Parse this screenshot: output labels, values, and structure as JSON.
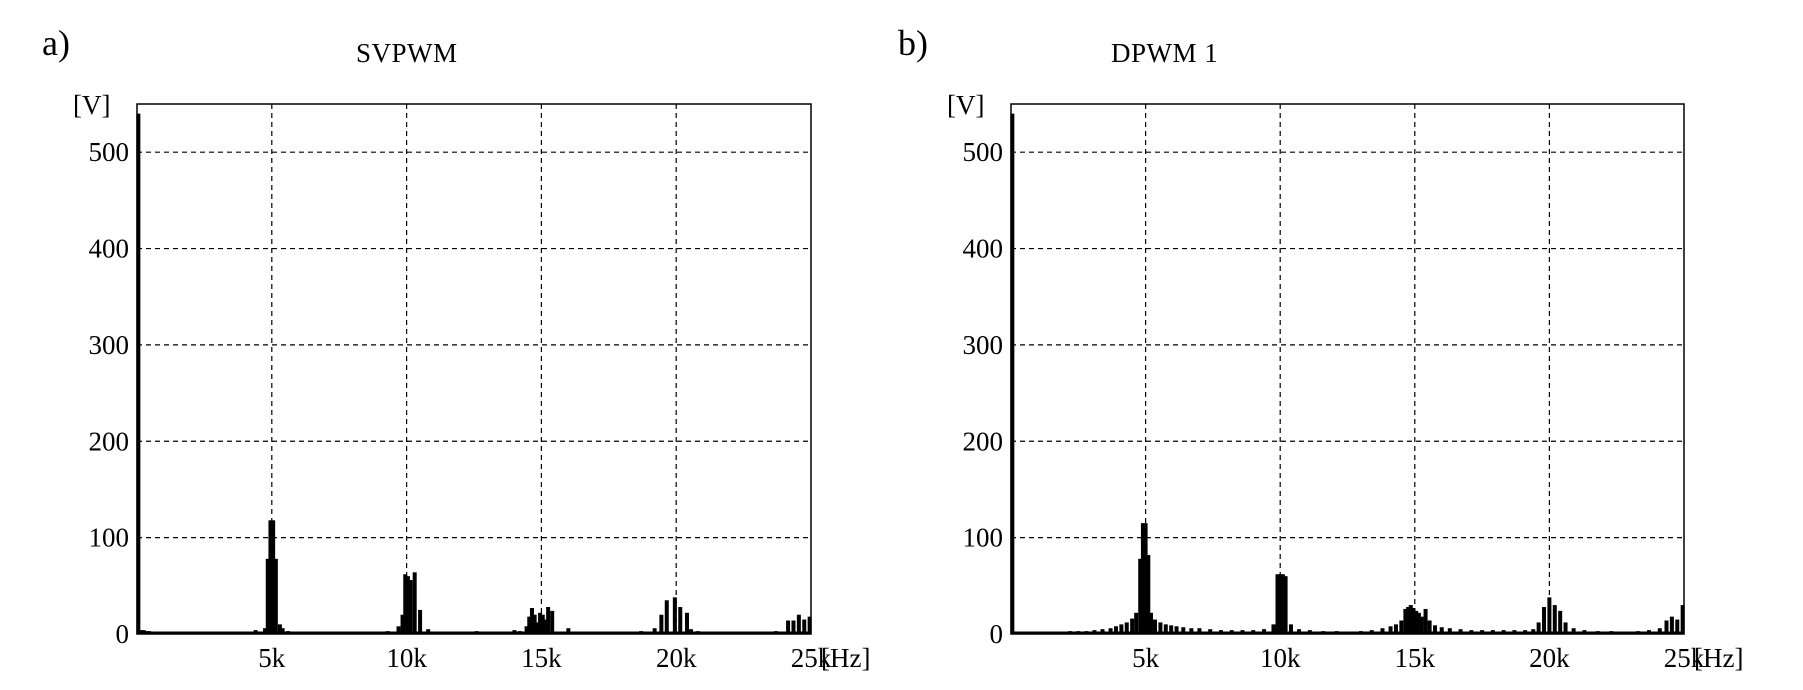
{
  "chart_data": [
    {
      "type": "bar",
      "panel_label": "a)",
      "title": "SVPWM",
      "ylabel": "[V]",
      "xlabel": "[Hz]",
      "x_unit": "Hz",
      "xlim": [
        0,
        25000
      ],
      "ylim": [
        0,
        550
      ],
      "y_ticks": [
        0,
        100,
        200,
        300,
        400,
        500
      ],
      "x_ticks": [
        5000,
        10000,
        15000,
        20000,
        25000
      ],
      "x_tick_labels": [
        "5k",
        "10k",
        "15k",
        "20k",
        "25k"
      ],
      "grid": true,
      "color": "#000000",
      "x": [
        50,
        150,
        250,
        350,
        450,
        2700,
        3600,
        4400,
        4600,
        4750,
        4850,
        4950,
        5050,
        5150,
        5300,
        5400,
        5600,
        6000,
        6800,
        8000,
        8600,
        9300,
        9700,
        9850,
        9950,
        10050,
        10150,
        10300,
        10500,
        10800,
        11500,
        12000,
        12600,
        13500,
        14000,
        14200,
        14450,
        14550,
        14650,
        14750,
        14850,
        14950,
        15050,
        15150,
        15250,
        15400,
        16000,
        17000,
        17500,
        18000,
        18700,
        19200,
        19450,
        19650,
        19950,
        20150,
        20400,
        20550,
        20800,
        21500,
        22000,
        22500,
        23000,
        23700,
        24150,
        24350,
        24550,
        24750,
        24950
      ],
      "values": [
        540,
        4,
        4,
        3,
        3,
        2,
        1,
        4,
        2,
        6,
        78,
        118,
        118,
        78,
        10,
        6,
        3,
        2,
        1,
        1,
        2,
        3,
        8,
        20,
        62,
        60,
        56,
        64,
        25,
        5,
        2,
        2,
        3,
        2,
        4,
        3,
        8,
        18,
        27,
        20,
        12,
        22,
        20,
        15,
        28,
        24,
        6,
        2,
        2,
        1,
        3,
        6,
        20,
        35,
        38,
        28,
        22,
        5,
        3,
        2,
        1,
        1,
        2,
        3,
        14,
        14,
        20,
        15,
        18
      ]
    },
    {
      "type": "bar",
      "panel_label": "b)",
      "title": "DPWM 1",
      "ylabel": "[V]",
      "xlabel": "[Hz]",
      "x_unit": "Hz",
      "xlim": [
        0,
        25000
      ],
      "ylim": [
        0,
        550
      ],
      "y_ticks": [
        0,
        100,
        200,
        300,
        400,
        500
      ],
      "x_ticks": [
        5000,
        10000,
        15000,
        20000,
        25000
      ],
      "x_tick_labels": [
        "5k",
        "10k",
        "15k",
        "20k",
        "25k"
      ],
      "grid": true,
      "color": "#000000",
      "x": [
        50,
        300,
        1200,
        1600,
        1900,
        2200,
        2500,
        2800,
        3100,
        3400,
        3700,
        3900,
        4100,
        4300,
        4500,
        4650,
        4800,
        4900,
        5000,
        5100,
        5200,
        5350,
        5550,
        5750,
        5950,
        6150,
        6400,
        6700,
        7000,
        7400,
        7800,
        8200,
        8600,
        9000,
        9400,
        9750,
        9900,
        10000,
        10100,
        10200,
        10400,
        10700,
        11100,
        11600,
        12100,
        12600,
        13000,
        13400,
        13800,
        14100,
        14300,
        14500,
        14650,
        14750,
        14850,
        14950,
        15050,
        15150,
        15250,
        15400,
        15550,
        15750,
        16000,
        16300,
        16700,
        17100,
        17500,
        17900,
        18300,
        18700,
        19100,
        19400,
        19600,
        19800,
        20000,
        20200,
        20400,
        20600,
        20900,
        21300,
        21800,
        22300,
        22800,
        23300,
        23700,
        24100,
        24350,
        24550,
        24750,
        24950
      ],
      "values": [
        540,
        2,
        2,
        2,
        2,
        3,
        3,
        3,
        4,
        5,
        6,
        8,
        10,
        12,
        16,
        22,
        78,
        115,
        115,
        82,
        22,
        15,
        12,
        10,
        9,
        8,
        7,
        6,
        6,
        5,
        4,
        4,
        4,
        4,
        5,
        10,
        62,
        62,
        62,
        60,
        10,
        5,
        4,
        3,
        3,
        2,
        3,
        4,
        6,
        8,
        10,
        14,
        26,
        28,
        30,
        27,
        24,
        22,
        18,
        26,
        14,
        9,
        7,
        6,
        5,
        4,
        4,
        4,
        4,
        4,
        4,
        5,
        12,
        28,
        38,
        30,
        24,
        12,
        6,
        4,
        3,
        3,
        2,
        3,
        4,
        6,
        14,
        18,
        15,
        30
      ]
    }
  ]
}
